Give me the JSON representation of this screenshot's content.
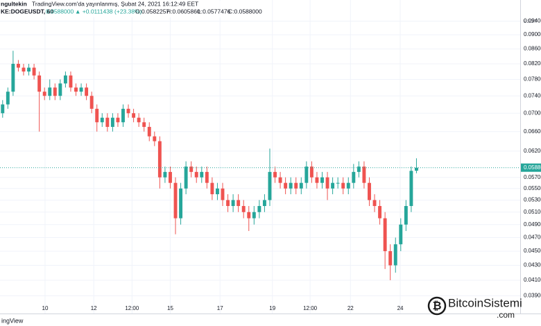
{
  "chart_data": {
    "type": "candlestick",
    "header": {
      "publisher": "ngultekin",
      "published": "TradingView.com'da yayınlanmış, Şubat 24, 2021 16:12:49 EET",
      "symbol": "KE:DOGEUSDT, 60",
      "last": "0.0588000",
      "change": "▲ +0.0111438 (+23.38%)",
      "o": "O:0.0582257",
      "h": "H:0.0605860",
      "l": "L:0.0577476",
      "c": "C:0.0588000"
    },
    "currency": "USDT",
    "brand": "ingView",
    "watermark": {
      "name": "BitcoinSistemi",
      "domain": ".com"
    },
    "up_color": "#26a69a",
    "down_color": "#ef5350",
    "grid": true,
    "log_scale": true,
    "ylim": [
      0.0381,
      0.1006
    ],
    "yticks": [
      {
        "value": 0.094,
        "label": "0.0940000"
      },
      {
        "value": 0.09,
        "label": "0.0900000"
      },
      {
        "value": 0.086,
        "label": "0.0860000"
      },
      {
        "value": 0.082,
        "label": "0.0820000"
      },
      {
        "value": 0.078,
        "label": "0.0780000"
      },
      {
        "value": 0.074,
        "label": "0.0740000"
      },
      {
        "value": 0.07,
        "label": "0.0700000"
      },
      {
        "value": 0.066,
        "label": "0.0660000"
      },
      {
        "value": 0.062,
        "label": "0.0620000"
      },
      {
        "value": 0.057,
        "label": "0.0570000"
      },
      {
        "value": 0.055,
        "label": "0.0550000"
      },
      {
        "value": 0.053,
        "label": "0.0530000"
      },
      {
        "value": 0.051,
        "label": "0.0510000"
      },
      {
        "value": 0.049,
        "label": "0.0490000"
      },
      {
        "value": 0.047,
        "label": "0.0470000"
      },
      {
        "value": 0.045,
        "label": "0.0450000"
      },
      {
        "value": 0.043,
        "label": "0.0430000"
      },
      {
        "value": 0.041,
        "label": "0.0410000"
      },
      {
        "value": 0.039,
        "label": "0.0390000"
      }
    ],
    "xlim": [
      -0.5,
      98.8
    ],
    "xticks": [
      {
        "value": 8.1,
        "label": "10"
      },
      {
        "value": 17.4,
        "label": "12"
      },
      {
        "value": 24.7,
        "label": "12:00"
      },
      {
        "value": 32,
        "label": "15"
      },
      {
        "value": 41.5,
        "label": "17"
      },
      {
        "value": 51.5,
        "label": "19"
      },
      {
        "value": 58.7,
        "label": "12:00"
      },
      {
        "value": 66.4,
        "label": "22"
      },
      {
        "value": 75.9,
        "label": "24"
      }
    ],
    "last_price": 0.0588,
    "last_price_label": "0.0588000",
    "open": [
      0.07,
      0.072,
      0.075,
      0.082,
      0.081,
      0.08,
      0.081,
      0.079,
      0.075,
      0.074,
      0.076,
      0.074,
      0.077,
      0.079,
      0.076,
      0.075,
      0.076,
      0.074,
      0.071,
      0.068,
      0.069,
      0.067,
      0.069,
      0.068,
      0.071,
      0.07,
      0.069,
      0.068,
      0.067,
      0.065,
      0.064,
      0.057,
      0.058,
      0.056,
      0.05,
      0.055,
      0.059,
      0.058,
      0.057,
      0.058,
      0.056,
      0.054,
      0.055,
      0.053,
      0.052,
      0.053,
      0.052,
      0.051,
      0.05,
      0.051,
      0.052,
      0.053,
      0.058,
      0.057,
      0.056,
      0.055,
      0.056,
      0.055,
      0.056,
      0.059,
      0.057,
      0.056,
      0.057,
      0.055,
      0.056,
      0.056,
      0.055,
      0.056,
      0.058,
      0.059,
      0.056,
      0.053,
      0.052,
      0.05,
      0.045,
      0.043,
      0.046,
      0.049,
      0.052,
      0.0582257
    ],
    "high": [
      0.073,
      0.076,
      0.0855,
      0.083,
      0.082,
      0.082,
      0.082,
      0.08,
      0.076,
      0.078,
      0.077,
      0.078,
      0.08,
      0.08,
      0.077,
      0.077,
      0.077,
      0.075,
      0.072,
      0.07,
      0.07,
      0.07,
      0.07,
      0.072,
      0.072,
      0.071,
      0.07,
      0.069,
      0.068,
      0.066,
      0.065,
      0.059,
      0.059,
      0.057,
      0.056,
      0.06,
      0.06,
      0.059,
      0.059,
      0.059,
      0.057,
      0.056,
      0.056,
      0.054,
      0.054,
      0.054,
      0.053,
      0.052,
      0.052,
      0.053,
      0.054,
      0.0625,
      0.059,
      0.058,
      0.057,
      0.057,
      0.057,
      0.057,
      0.06,
      0.06,
      0.058,
      0.058,
      0.058,
      0.057,
      0.057,
      0.057,
      0.057,
      0.0595,
      0.06,
      0.06,
      0.057,
      0.054,
      0.053,
      0.051,
      0.046,
      0.047,
      0.05,
      0.053,
      0.059,
      0.060586
    ],
    "low": [
      0.069,
      0.071,
      0.074,
      0.08,
      0.079,
      0.079,
      0.078,
      0.066,
      0.073,
      0.073,
      0.073,
      0.073,
      0.076,
      0.075,
      0.074,
      0.074,
      0.073,
      0.07,
      0.066,
      0.067,
      0.066,
      0.066,
      0.067,
      0.067,
      0.069,
      0.068,
      0.067,
      0.066,
      0.064,
      0.063,
      0.055,
      0.056,
      0.055,
      0.0475,
      0.049,
      0.054,
      0.057,
      0.056,
      0.056,
      0.055,
      0.053,
      0.053,
      0.052,
      0.051,
      0.051,
      0.051,
      0.05,
      0.048,
      0.049,
      0.05,
      0.051,
      0.052,
      0.056,
      0.055,
      0.054,
      0.054,
      0.054,
      0.054,
      0.055,
      0.056,
      0.055,
      0.055,
      0.053,
      0.054,
      0.055,
      0.054,
      0.054,
      0.055,
      0.057,
      0.055,
      0.052,
      0.051,
      0.049,
      0.0425,
      0.041,
      0.042,
      0.045,
      0.048,
      0.051,
      0.0577476
    ],
    "close": [
      0.072,
      0.075,
      0.082,
      0.081,
      0.08,
      0.081,
      0.079,
      0.075,
      0.074,
      0.076,
      0.074,
      0.077,
      0.079,
      0.076,
      0.075,
      0.076,
      0.074,
      0.071,
      0.068,
      0.069,
      0.067,
      0.069,
      0.068,
      0.071,
      0.07,
      0.069,
      0.068,
      0.067,
      0.065,
      0.064,
      0.057,
      0.058,
      0.056,
      0.05,
      0.055,
      0.059,
      0.058,
      0.057,
      0.058,
      0.056,
      0.054,
      0.055,
      0.053,
      0.052,
      0.053,
      0.052,
      0.051,
      0.05,
      0.051,
      0.052,
      0.053,
      0.058,
      0.057,
      0.056,
      0.055,
      0.056,
      0.055,
      0.056,
      0.059,
      0.057,
      0.056,
      0.057,
      0.055,
      0.056,
      0.056,
      0.055,
      0.056,
      0.058,
      0.059,
      0.056,
      0.053,
      0.052,
      0.05,
      0.045,
      0.043,
      0.046,
      0.049,
      0.052,
      0.0582,
      0.0588
    ]
  }
}
